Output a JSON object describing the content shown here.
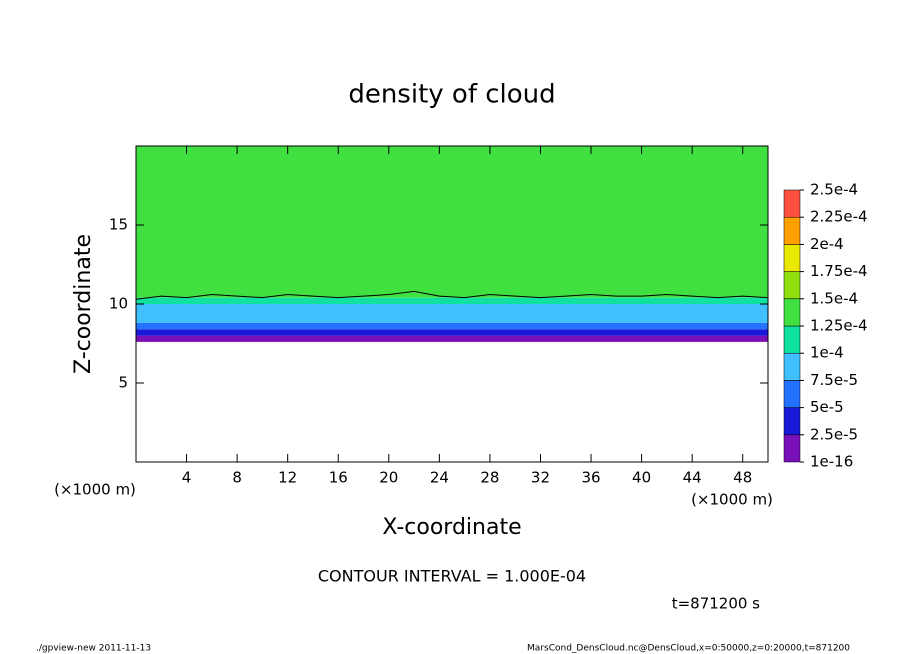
{
  "chart_data": {
    "type": "profile-contour",
    "title": "density of cloud",
    "x_label": "X-coordinate",
    "y_label": "Z-coordinate",
    "y_unit": "(×1000 m)",
    "x_unit": "(×1000 m)",
    "xlim": [
      0,
      50
    ],
    "ylim": [
      0,
      20
    ],
    "xticks": [
      4,
      8,
      12,
      16,
      20,
      24,
      28,
      32,
      36,
      40,
      44,
      48
    ],
    "yticks": [
      5,
      10,
      15
    ],
    "z_edges": [
      7.6,
      8.0,
      8.4,
      8.8,
      9.4,
      10.0,
      10.4,
      20
    ],
    "values": [
      1e-05,
      3e-05,
      5.5e-05,
      8e-05,
      9e-05,
      0.00011,
      0.00013
    ],
    "contour": {
      "x": [
        0,
        2,
        4,
        6,
        8,
        10,
        12,
        14,
        16,
        18,
        20,
        22,
        24,
        26,
        28,
        30,
        32,
        34,
        36,
        38,
        40,
        42,
        44,
        46,
        48,
        50
      ],
      "z": [
        10.3,
        10.5,
        10.4,
        10.6,
        10.5,
        10.4,
        10.6,
        10.5,
        10.4,
        10.5,
        10.6,
        10.8,
        10.5,
        10.4,
        10.6,
        10.5,
        10.4,
        10.5,
        10.6,
        10.5,
        10.5,
        10.6,
        10.5,
        10.4,
        10.5,
        10.4
      ]
    },
    "levels": [
      {
        "value": 1e-16,
        "label": "1e-16"
      },
      {
        "value": 2.5e-05,
        "label": "2.5e-5"
      },
      {
        "value": 5e-05,
        "label": "5e-5"
      },
      {
        "value": 7.5e-05,
        "label": "7.5e-5"
      },
      {
        "value": 0.0001,
        "label": "1e-4"
      },
      {
        "value": 0.000125,
        "label": "1.25e-4"
      },
      {
        "value": 0.00015,
        "label": "1.5e-4"
      },
      {
        "value": 0.000175,
        "label": "1.75e-4"
      },
      {
        "value": 0.0002,
        "label": "2e-4"
      },
      {
        "value": 0.000225,
        "label": "2.25e-4"
      },
      {
        "value": 0.00025,
        "label": "2.5e-4"
      }
    ],
    "colors": [
      "#7a10b8",
      "#1818d8",
      "#2470ff",
      "#40c0ff",
      "#10e0a0",
      "#40e040",
      "#90e010",
      "#e8e800",
      "#ffa000",
      "#ff5040"
    ],
    "contour_interval": "CONTOUR INTERVAL = 1.000E-04",
    "time_label": "t=871200 s",
    "footer_left": "./gpview-new  2011-11-13",
    "footer_right": "MarsCond_DensCloud.nc@DensCloud,x=0:50000,z=0:20000,t=871200"
  }
}
